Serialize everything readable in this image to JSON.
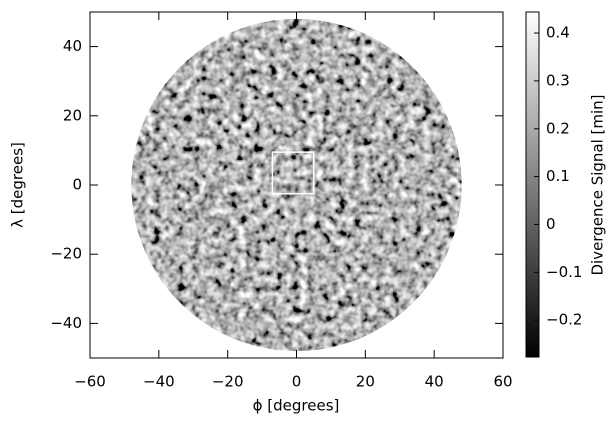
{
  "chart_data": {
    "type": "image",
    "xlabel": "ϕ [degrees]",
    "ylabel": "λ [degrees]",
    "xlim": [
      -60,
      60
    ],
    "ylim": [
      -50,
      50
    ],
    "xticks": [
      {
        "value": -60,
        "label": "−60"
      },
      {
        "value": -40,
        "label": "−40"
      },
      {
        "value": -20,
        "label": "−20"
      },
      0,
      20,
      40,
      60
    ],
    "yticks": [
      {
        "value": -40,
        "label": "−40"
      },
      {
        "value": -20,
        "label": "−20"
      },
      0,
      20,
      40
    ],
    "disk_radius": 48,
    "region": {
      "x": [
        -7,
        5
      ],
      "y": [
        -2.5,
        9.5
      ],
      "color": "#ffffff"
    },
    "colorbar": {
      "label": "Divergence Signal [min]",
      "cmap": "gray",
      "lim": [
        -0.277,
        0.444
      ],
      "ticks": [
        {
          "value": -0.2,
          "label": "−0.2"
        },
        {
          "value": -0.1,
          "label": "−0.1"
        },
        0,
        0.1,
        0.2,
        0.3,
        0.4
      ]
    }
  }
}
